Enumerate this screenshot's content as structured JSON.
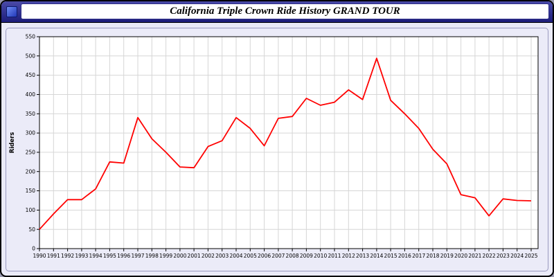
{
  "window": {
    "title": "California Triple Crown Ride History GRAND TOUR",
    "icon": "app-icon"
  },
  "chart_data": {
    "type": "line",
    "title": "California Triple Crown Ride History GRAND TOUR",
    "xlabel": "",
    "ylabel": "Riders",
    "ylim": [
      0,
      550
    ],
    "ytick_step": 50,
    "grid": true,
    "legend": "none",
    "line_color": "#ff0000",
    "x": [
      "1990",
      "1991",
      "1992",
      "1993",
      "1994",
      "1995",
      "1996",
      "1997",
      "1998",
      "1999",
      "2000",
      "2001",
      "2002",
      "2003",
      "2004",
      "2005",
      "2006",
      "2007",
      "2008",
      "2009",
      "2010",
      "2011",
      "2012",
      "2013",
      "2014",
      "2015",
      "2016",
      "2017",
      "2018",
      "2019",
      "2020",
      "2021",
      "2022",
      "2023",
      "2024",
      "2025"
    ],
    "values": [
      50,
      90,
      127,
      127,
      155,
      225,
      222,
      340,
      285,
      250,
      212,
      210,
      265,
      280,
      340,
      312,
      267,
      338,
      343,
      390,
      372,
      380,
      412,
      387,
      494,
      385,
      350,
      312,
      258,
      220,
      140,
      132,
      85,
      129,
      125,
      124
    ]
  }
}
